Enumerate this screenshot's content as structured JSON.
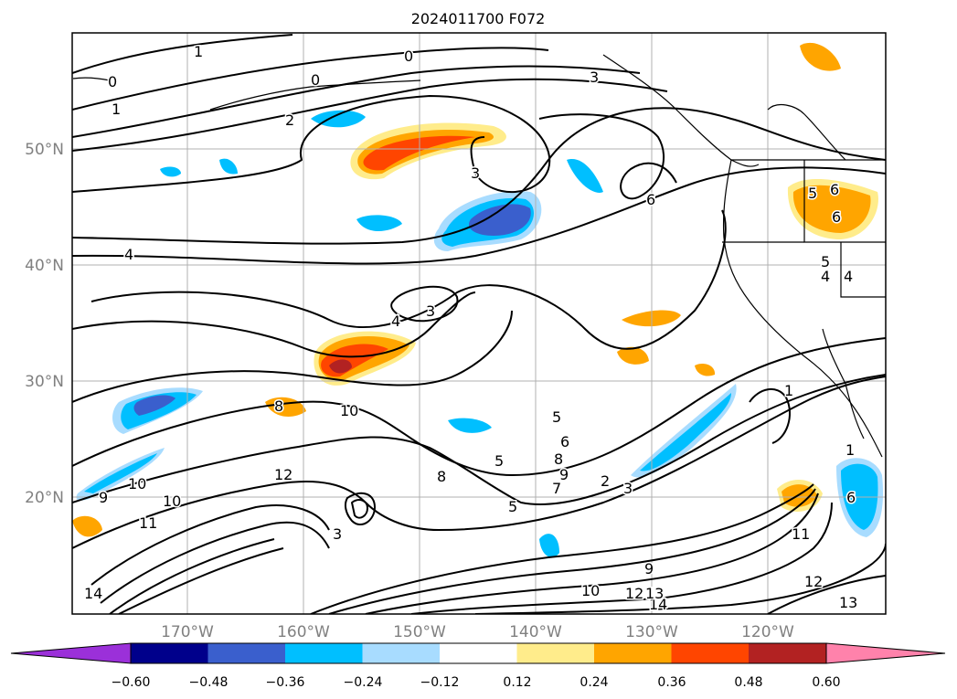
{
  "title": "2024011700 F072",
  "lat_labels": [
    "50°N",
    "40°N",
    "30°N",
    "20°N"
  ],
  "lon_labels": [
    "170°W",
    "160°W",
    "150°W",
    "140°W",
    "130°W",
    "120°W"
  ],
  "colorbar": {
    "ticks": [
      "−0.60",
      "−0.48",
      "−0.36",
      "−0.24",
      "−0.12",
      "0.12",
      "0.24",
      "0.36",
      "0.48",
      "0.60"
    ],
    "colors": [
      "#9b30d9",
      "#00008b",
      "#3a5fcd",
      "#00bfff",
      "#a8dcff",
      "#ffffff",
      "#ffec8b",
      "#ffa500",
      "#ff4500",
      "#b22222",
      "#ff82ab"
    ]
  },
  "contour_labels": [
    "1",
    "0",
    "1",
    "2",
    "0",
    "0",
    "3",
    "3",
    "6",
    "4",
    "4",
    "3",
    "8",
    "10",
    "5",
    "5",
    "6",
    "8",
    "9",
    "7",
    "2",
    "3",
    "12",
    "10",
    "9",
    "10",
    "11",
    "6",
    "5",
    "3",
    "8",
    "1",
    "1",
    "6",
    "11",
    "9",
    "13",
    "14",
    "12",
    "13",
    "10",
    "12",
    "14",
    "5",
    "6",
    "5",
    "4",
    "4"
  ],
  "shading_colors": {
    "neg_light": "#a8dcff",
    "neg_mid": "#00bfff",
    "neg_dark": "#3a5fcd",
    "pos_light": "#ffec8b",
    "pos_mid": "#ffa500",
    "pos_dark": "#ff4500",
    "pos_max": "#b22222"
  }
}
